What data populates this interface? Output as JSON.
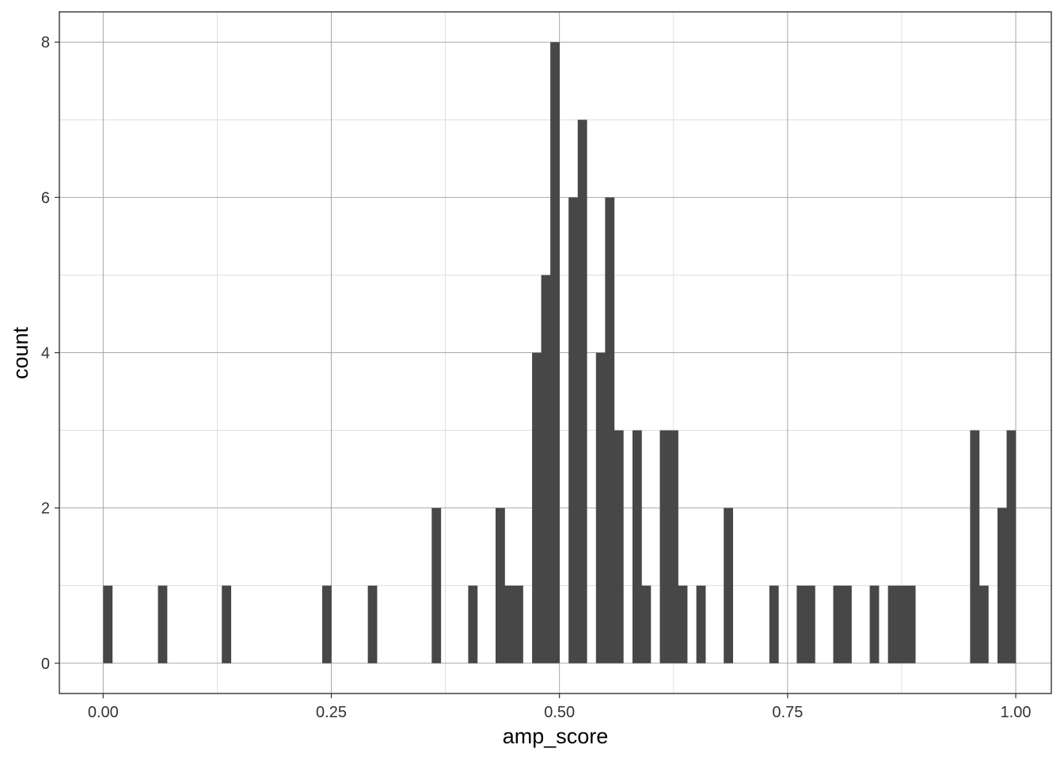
{
  "chart_data": {
    "type": "bar",
    "subtype": "histogram",
    "title": "",
    "xlabel": "amp_score",
    "ylabel": "count",
    "xlim": [
      -0.048,
      1.039
    ],
    "ylim": [
      -0.39,
      8.39
    ],
    "x_ticks": [
      0.0,
      0.25,
      0.5,
      0.75,
      1.0
    ],
    "x_tick_labels": [
      "0.00",
      "0.25",
      "0.50",
      "0.75",
      "1.00"
    ],
    "y_ticks": [
      0,
      2,
      4,
      6,
      8
    ],
    "y_tick_labels": [
      "0",
      "2",
      "4",
      "6",
      "8"
    ],
    "grid": true,
    "bin_width": 0.01,
    "bin_start": 0.0,
    "bar_color": "#474747",
    "counts": [
      1,
      0,
      0,
      0,
      0,
      0,
      1,
      0,
      0,
      0,
      0,
      0,
      0,
      1,
      0,
      0,
      0,
      0,
      0,
      0,
      0,
      0,
      0,
      0,
      1,
      0,
      0,
      0,
      0,
      1,
      0,
      0,
      0,
      0,
      0,
      0,
      2,
      0,
      0,
      0,
      1,
      0,
      0,
      2,
      1,
      1,
      0,
      4,
      5,
      8,
      0,
      6,
      7,
      0,
      4,
      6,
      3,
      0,
      3,
      1,
      0,
      3,
      3,
      1,
      0,
      1,
      0,
      0,
      2,
      0,
      0,
      0,
      0,
      1,
      0,
      0,
      1,
      1,
      0,
      0,
      1,
      1,
      0,
      0,
      1,
      0,
      1,
      1,
      1,
      0,
      0,
      0,
      0,
      0,
      0,
      3,
      1,
      0,
      2,
      3
    ]
  }
}
